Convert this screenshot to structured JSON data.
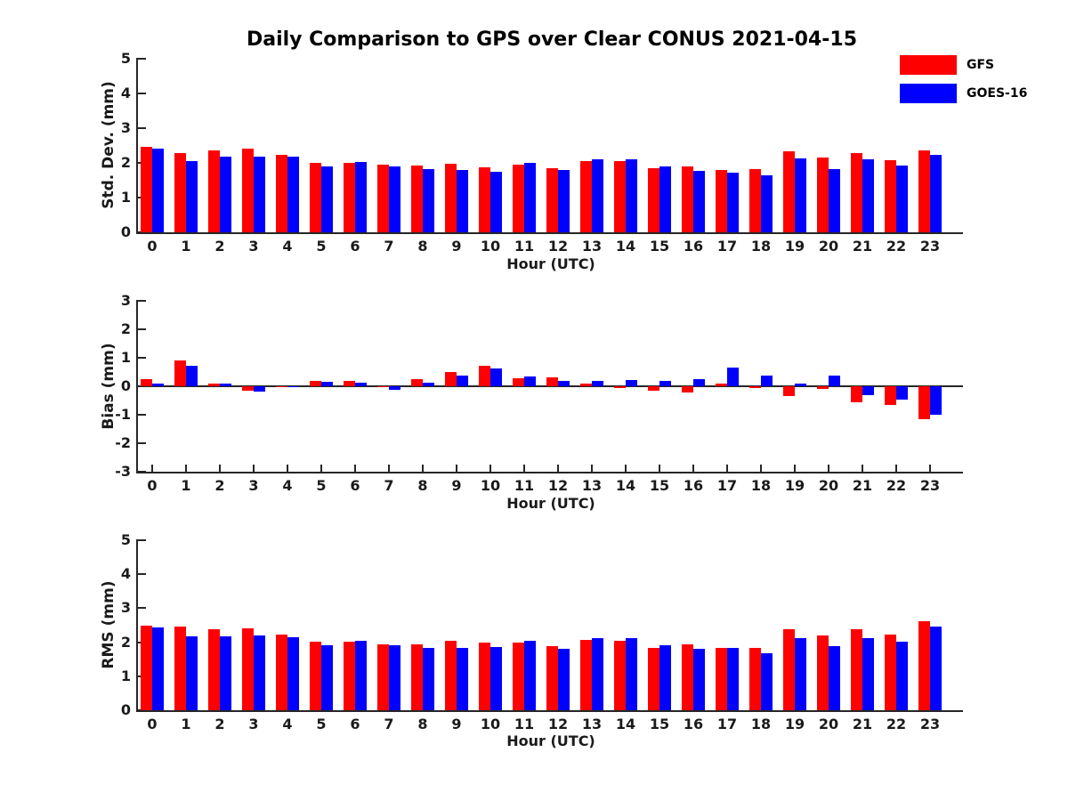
{
  "title": "Daily Comparison to GPS over Clear CONUS 2021-04-15",
  "legend": {
    "position": "top-right",
    "items": [
      {
        "label": "GFS",
        "color": "#ff0000"
      },
      {
        "label": "GOES-16",
        "color": "#0000ff"
      }
    ]
  },
  "colors": {
    "gfs": "#ff0000",
    "goes16": "#0000ff",
    "axis": "#262626",
    "text": "#1a1a1a",
    "background": "#ffffff"
  },
  "chart_data": [
    {
      "type": "bar",
      "name": "std-dev",
      "ylabel": "Std. Dev. (mm)",
      "xlabel": "Hour (UTC)",
      "ylim": [
        0,
        5
      ],
      "yticks": [
        0,
        1,
        2,
        3,
        4,
        5
      ],
      "grid": false,
      "categories": [
        "0",
        "1",
        "2",
        "3",
        "4",
        "5",
        "6",
        "7",
        "8",
        "9",
        "10",
        "11",
        "12",
        "13",
        "14",
        "15",
        "16",
        "17",
        "18",
        "19",
        "20",
        "21",
        "22",
        "23"
      ],
      "series": [
        {
          "name": "GFS",
          "color": "#ff0000",
          "values": [
            2.47,
            2.28,
            2.35,
            2.42,
            2.23,
            2.0,
            2.0,
            1.95,
            1.93,
            1.97,
            1.86,
            1.95,
            1.84,
            2.05,
            2.04,
            1.84,
            1.9,
            1.8,
            1.82,
            2.33,
            2.16,
            2.27,
            2.07,
            2.36
          ]
        },
        {
          "name": "GOES-16",
          "color": "#0000ff",
          "values": [
            2.42,
            2.05,
            2.18,
            2.18,
            2.17,
            1.9,
            2.03,
            1.9,
            1.81,
            1.8,
            1.75,
            2.0,
            1.79,
            2.1,
            2.1,
            1.89,
            1.78,
            1.73,
            1.63,
            2.14,
            1.82,
            2.1,
            1.93,
            2.23
          ]
        }
      ]
    },
    {
      "type": "bar",
      "name": "bias",
      "ylabel": "Bias (mm)",
      "xlabel": "Hour (UTC)",
      "ylim": [
        -3,
        3
      ],
      "yticks": [
        -3,
        -2,
        -1,
        0,
        1,
        2,
        3
      ],
      "grid": false,
      "zero_line": true,
      "categories": [
        "0",
        "1",
        "2",
        "3",
        "4",
        "5",
        "6",
        "7",
        "8",
        "9",
        "10",
        "11",
        "12",
        "13",
        "14",
        "15",
        "16",
        "17",
        "18",
        "19",
        "20",
        "21",
        "22",
        "23"
      ],
      "series": [
        {
          "name": "GFS",
          "color": "#ff0000",
          "values": [
            0.25,
            0.9,
            0.08,
            -0.16,
            -0.04,
            0.18,
            0.18,
            -0.02,
            0.25,
            0.5,
            0.72,
            0.28,
            0.32,
            0.09,
            -0.06,
            -0.17,
            -0.23,
            0.1,
            -0.07,
            -0.33,
            -0.1,
            -0.55,
            -0.65,
            -1.15
          ]
        },
        {
          "name": "GOES-16",
          "color": "#0000ff",
          "values": [
            0.08,
            0.72,
            0.08,
            -0.2,
            0.01,
            0.15,
            0.13,
            -0.11,
            0.14,
            0.38,
            0.62,
            0.35,
            0.18,
            0.18,
            0.22,
            0.18,
            0.24,
            0.65,
            0.38,
            0.08,
            0.37,
            -0.3,
            -0.48,
            -1.0
          ]
        }
      ]
    },
    {
      "type": "bar",
      "name": "rms",
      "ylabel": "RMS (mm)",
      "xlabel": "Hour (UTC)",
      "ylim": [
        0,
        5
      ],
      "yticks": [
        0,
        1,
        2,
        3,
        4,
        5
      ],
      "grid": false,
      "categories": [
        "0",
        "1",
        "2",
        "3",
        "4",
        "5",
        "6",
        "7",
        "8",
        "9",
        "10",
        "11",
        "12",
        "13",
        "14",
        "15",
        "16",
        "17",
        "18",
        "19",
        "20",
        "21",
        "22",
        "23"
      ],
      "series": [
        {
          "name": "GFS",
          "color": "#ff0000",
          "values": [
            2.5,
            2.45,
            2.37,
            2.42,
            2.22,
            2.02,
            2.02,
            1.94,
            1.95,
            2.04,
            2.0,
            1.98,
            1.88,
            2.07,
            2.05,
            1.84,
            1.93,
            1.82,
            1.84,
            2.38,
            2.2,
            2.38,
            2.22,
            2.62
          ]
        },
        {
          "name": "GOES-16",
          "color": "#0000ff",
          "values": [
            2.44,
            2.16,
            2.17,
            2.19,
            2.15,
            1.9,
            2.04,
            1.91,
            1.82,
            1.84,
            1.86,
            2.04,
            1.81,
            2.13,
            2.13,
            1.91,
            1.81,
            1.84,
            1.68,
            2.13,
            1.88,
            2.13,
            2.01,
            2.47
          ]
        }
      ]
    }
  ]
}
